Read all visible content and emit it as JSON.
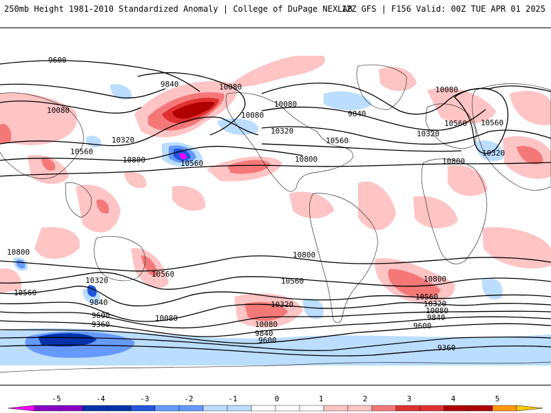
{
  "header": {
    "left_text": "250mb Height 1981-2010 Standardized Anomaly | College of DuPage NEXLAB",
    "right_text": "12Z GFS | F156 Valid: 00Z TUE APR 01 2025"
  },
  "colorbar": {
    "ticks": [
      "-5",
      "-4",
      "-3",
      "-2",
      "-1",
      "0",
      "1",
      "2",
      "3",
      "4",
      "5"
    ],
    "colors": [
      "#ff00ff",
      "#8a00c8",
      "#0033aa",
      "#2255dd",
      "#6699ff",
      "#bbddff",
      "#ffffff",
      "#ffffff",
      "#ffc4c4",
      "#f57878",
      "#e03030",
      "#b00000",
      "#ff9900",
      "#ffcc00"
    ]
  },
  "map": {
    "contour_labels": [
      "9600",
      "9840",
      "10080",
      "10080",
      "10320",
      "10560",
      "10800",
      "10560",
      "10080",
      "10320",
      "10560",
      "9840",
      "10080",
      "10560",
      "10320",
      "10800",
      "10080",
      "10560",
      "10320",
      "10800",
      "10800",
      "10560",
      "10320",
      "9840",
      "9600",
      "9360",
      "10800",
      "10560",
      "10080",
      "10320",
      "10080",
      "9840",
      "9600",
      "10560",
      "10800",
      "10560",
      "10320",
      "10080",
      "9840",
      "9600",
      "9360"
    ]
  }
}
